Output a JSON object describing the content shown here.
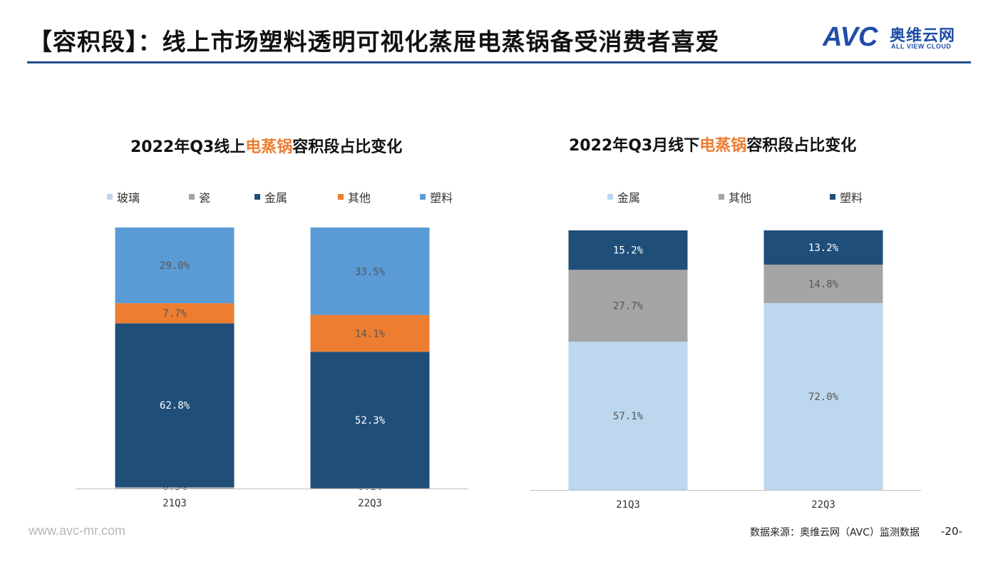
{
  "header": {
    "title": "【容积段】：线上市场塑料透明可视化蒸屉电蒸锅备受消费者喜爱",
    "logo_text_cn": "奥维云网",
    "logo_text_en": "ALL VIEW CLOUD",
    "logo_brand": "AVC"
  },
  "colors": {
    "accent_orange": "#ed7d31",
    "brand_blue": "#1f4e8c",
    "glass": "#bdd7ee",
    "ceramic": "#a5a5a5",
    "metal": "#1f4e79",
    "other": "#ed7d31",
    "plastic": "#5b9bd5"
  },
  "chart_data": [
    {
      "type": "bar",
      "stacked": true,
      "title_prefix": "2022年Q3线上",
      "title_highlight": "电蒸锅",
      "title_suffix": "容积段占比变化",
      "categories": [
        "21Q3",
        "22Q3"
      ],
      "ylim": [
        0,
        100
      ],
      "legend_position": "top",
      "series": [
        {
          "name": "玻璃",
          "color": "#bdd7ee",
          "values": [
            0.0,
            0.0
          ],
          "labels": [
            "",
            ""
          ]
        },
        {
          "name": "瓷",
          "color": "#a5a5a5",
          "values": [
            0.5,
            0.1
          ],
          "labels": [
            "0.5%",
            "0.1%"
          ]
        },
        {
          "name": "金属",
          "color": "#1f4e79",
          "values": [
            62.8,
            52.3
          ],
          "labels": [
            "62.8%",
            "52.3%"
          ]
        },
        {
          "name": "其他",
          "color": "#ed7d31",
          "values": [
            7.7,
            14.1
          ],
          "labels": [
            "7.7%",
            "14.1%"
          ]
        },
        {
          "name": "塑料",
          "color": "#5b9bd5",
          "values": [
            29.0,
            33.5
          ],
          "labels": [
            "29.0%",
            "33.5%"
          ]
        }
      ]
    },
    {
      "type": "bar",
      "stacked": true,
      "title_prefix": "2022年Q3月线下",
      "title_highlight": "电蒸锅",
      "title_suffix": "容积段占比变化",
      "categories": [
        "21Q3",
        "22Q3"
      ],
      "ylim": [
        0,
        100
      ],
      "legend_position": "top",
      "series": [
        {
          "name": "金属",
          "color": "#bdd7ee",
          "values": [
            57.1,
            72.0
          ],
          "labels": [
            "57.1%",
            "72.0%"
          ]
        },
        {
          "name": "其他",
          "color": "#a5a5a5",
          "values": [
            27.7,
            14.8
          ],
          "labels": [
            "27.7%",
            "14.8%"
          ]
        },
        {
          "name": "塑料",
          "color": "#1f4e79",
          "values": [
            15.2,
            13.2
          ],
          "labels": [
            "15.2%",
            "13.2%"
          ]
        }
      ]
    }
  ],
  "footer": {
    "url": "www.avc-mr.com",
    "source": "数据来源：奥维云网（AVC）监测数据",
    "page_number": "-20-"
  }
}
